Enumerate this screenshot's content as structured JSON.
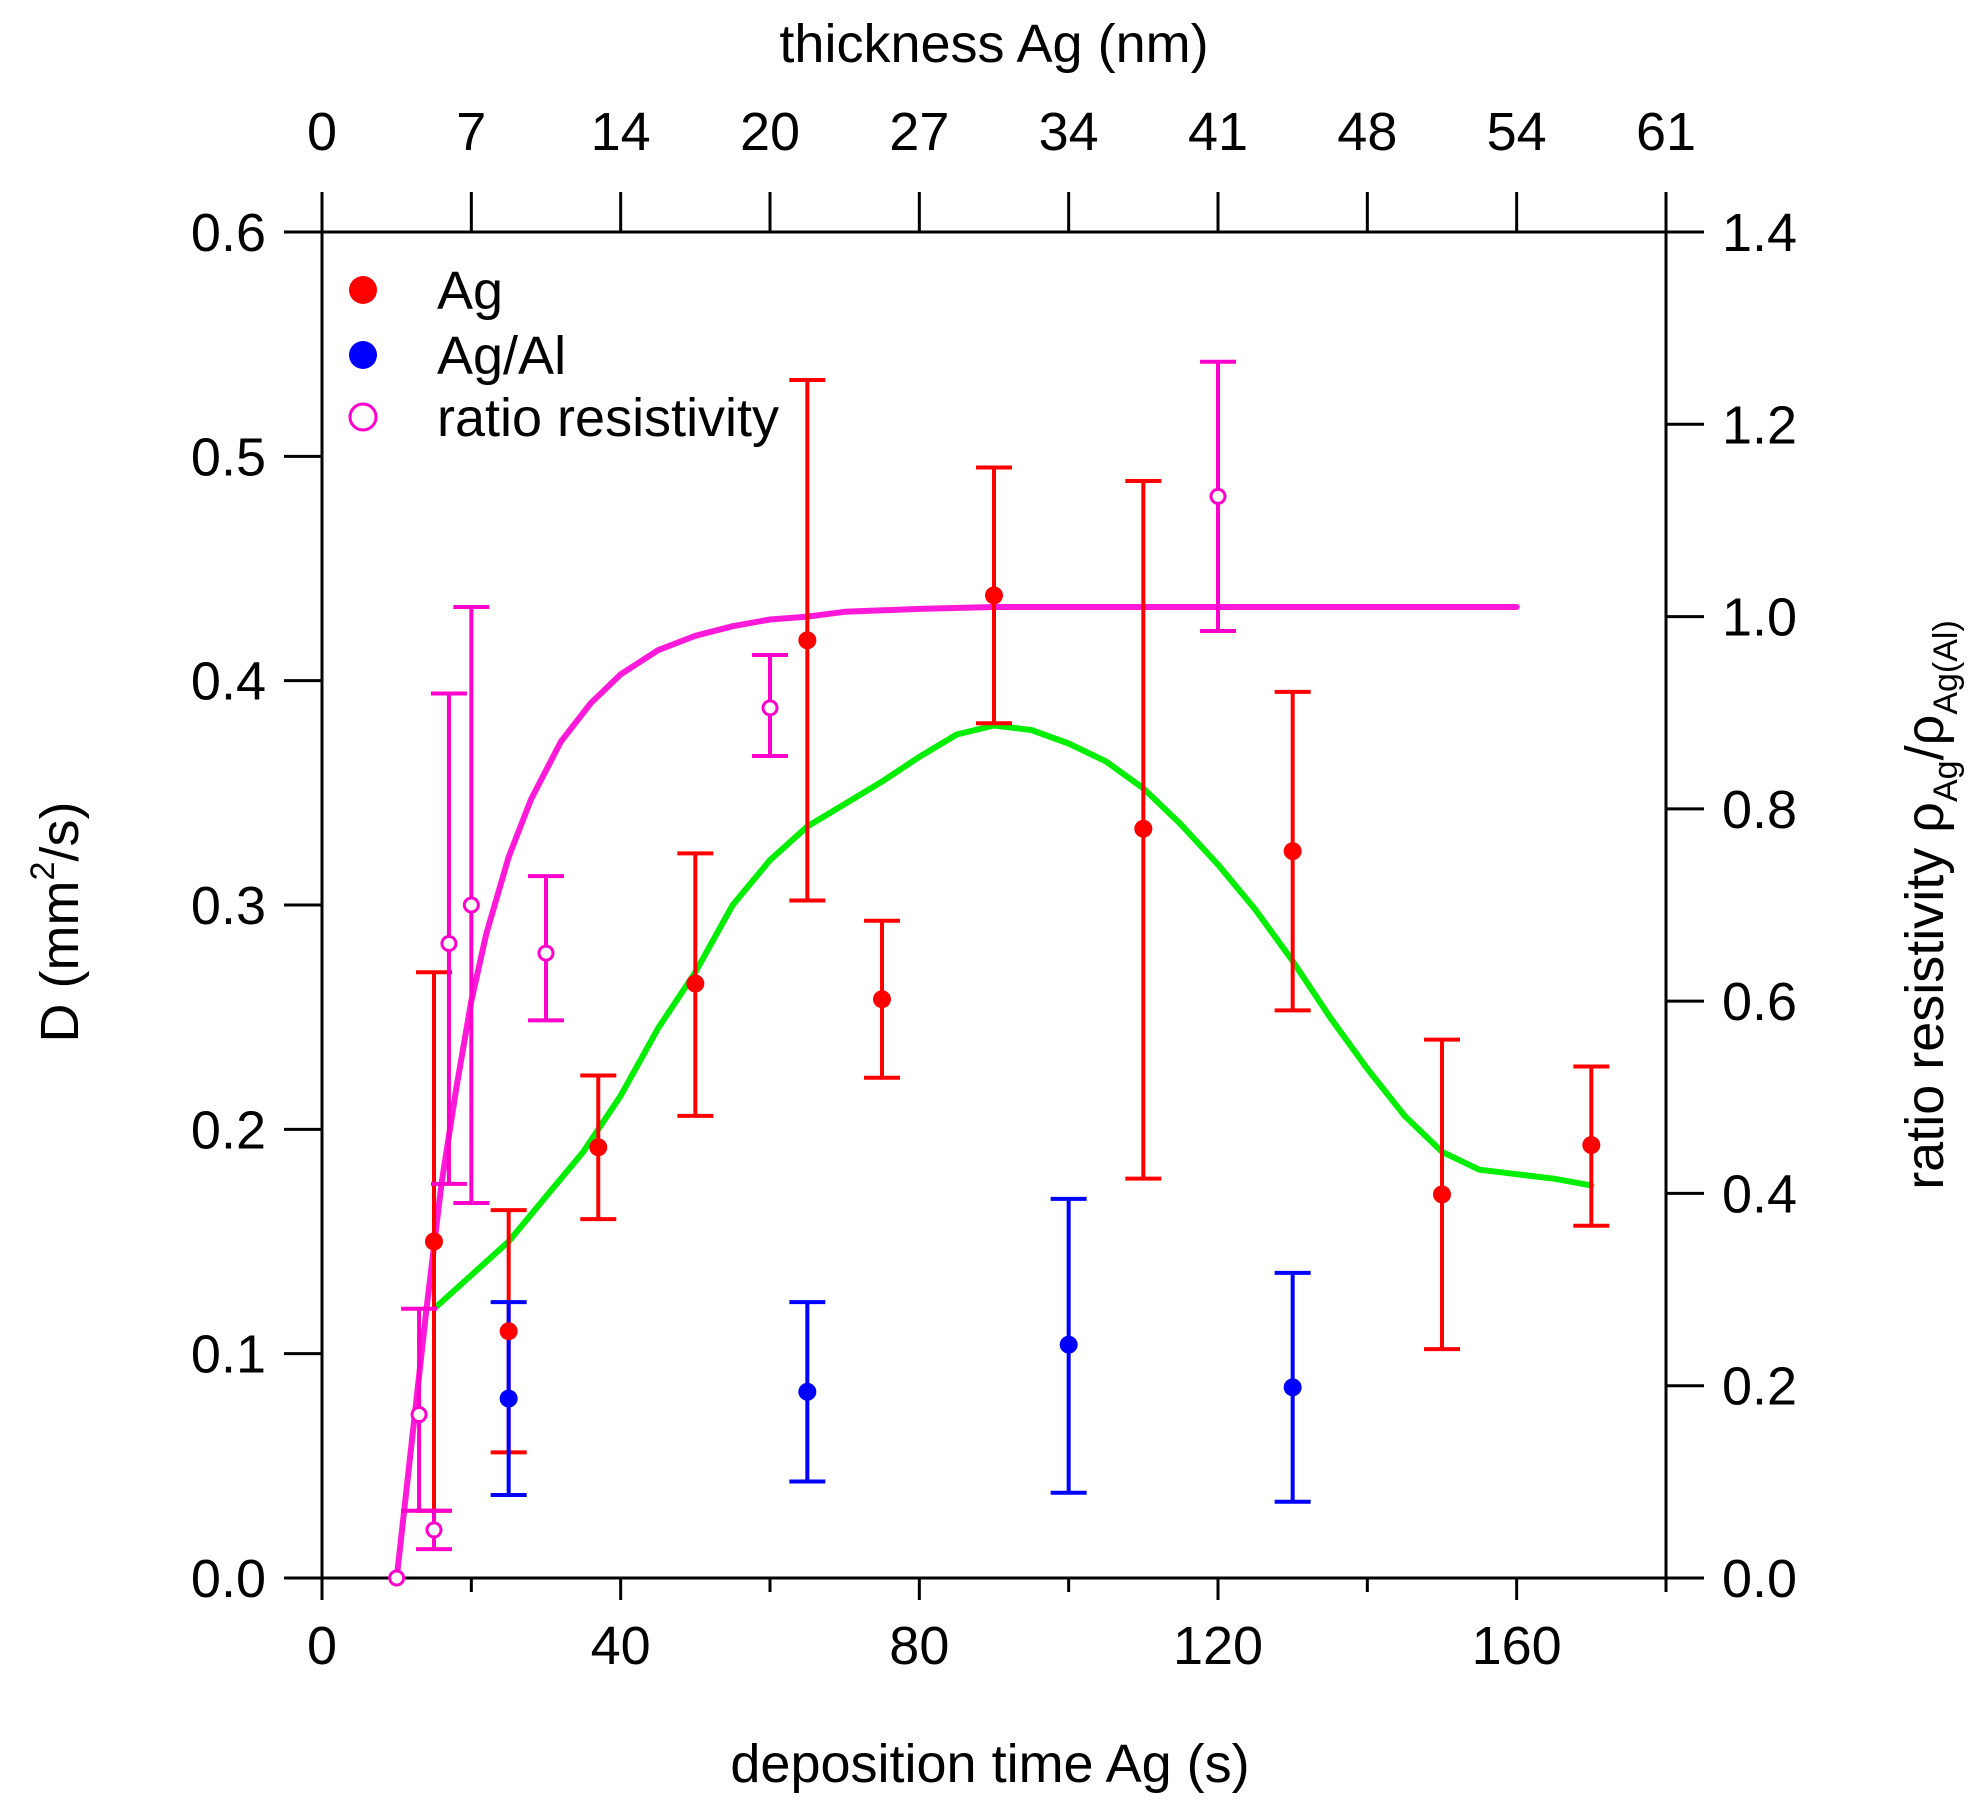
{
  "chart_data": {
    "type": "scatter",
    "x_bottom": {
      "label": "deposition time Ag (s)",
      "range": [
        0,
        180
      ],
      "ticks": [
        0,
        40,
        80,
        120,
        160
      ],
      "minor_ticks": [
        20,
        60,
        100,
        140,
        180
      ]
    },
    "x_top": {
      "label": "thickness Ag (nm)",
      "ticks": [
        "0",
        "7",
        "14",
        "20",
        "27",
        "34",
        "41",
        "48",
        "54",
        "61"
      ]
    },
    "y_left": {
      "label_main": "D (mm",
      "label_sup": "2",
      "label_end": "/s)",
      "range": [
        0,
        0.6
      ],
      "ticks": [
        "0.0",
        "0.1",
        "0.2",
        "0.3",
        "0.4",
        "0.5",
        "0.6"
      ]
    },
    "y_right": {
      "label_main": "ratio resistivity ρ",
      "label_sub1": "Ag",
      "label_mid": "/ρ",
      "label_sub2": "Ag(Al)",
      "range": [
        0,
        1.4
      ],
      "ticks": [
        "0.0",
        "0.2",
        "0.4",
        "0.6",
        "0.8",
        "1.0",
        "1.2",
        "1.4"
      ]
    },
    "legend": [
      {
        "label": "Ag",
        "color": "#ff0000",
        "marker": "filled-circle"
      },
      {
        "label": "Ag/Al",
        "color": "#0000ff",
        "marker": "filled-circle"
      },
      {
        "label": "ratio resistivity",
        "color": "#ff00cc",
        "marker": "open-circle"
      }
    ],
    "series": [
      {
        "name": "Ag",
        "axis": "left",
        "color": "#ff0000",
        "points": [
          {
            "x": 15,
            "y": 0.15,
            "lo": 0.03,
            "hi": 0.27
          },
          {
            "x": 25,
            "y": 0.11,
            "lo": 0.056,
            "hi": 0.164
          },
          {
            "x": 37,
            "y": 0.192,
            "lo": 0.16,
            "hi": 0.224
          },
          {
            "x": 50,
            "y": 0.265,
            "lo": 0.206,
            "hi": 0.323
          },
          {
            "x": 65,
            "y": 0.418,
            "lo": 0.302,
            "hi": 0.534
          },
          {
            "x": 75,
            "y": 0.258,
            "lo": 0.223,
            "hi": 0.293
          },
          {
            "x": 90,
            "y": 0.438,
            "lo": 0.381,
            "hi": 0.495
          },
          {
            "x": 110,
            "y": 0.334,
            "lo": 0.178,
            "hi": 0.489
          },
          {
            "x": 130,
            "y": 0.324,
            "lo": 0.253,
            "hi": 0.395
          },
          {
            "x": 150,
            "y": 0.171,
            "lo": 0.102,
            "hi": 0.24
          },
          {
            "x": 170,
            "y": 0.193,
            "lo": 0.157,
            "hi": 0.228
          }
        ]
      },
      {
        "name": "Ag/Al",
        "axis": "left",
        "color": "#0000ff",
        "points": [
          {
            "x": 25,
            "y": 0.08,
            "lo": 0.037,
            "hi": 0.123
          },
          {
            "x": 65,
            "y": 0.083,
            "lo": 0.043,
            "hi": 0.123
          },
          {
            "x": 100,
            "y": 0.104,
            "lo": 0.038,
            "hi": 0.169
          },
          {
            "x": 130,
            "y": 0.085,
            "lo": 0.034,
            "hi": 0.136
          }
        ]
      },
      {
        "name": "ratio resistivity",
        "axis": "right",
        "color": "#ff00cc",
        "points": [
          {
            "x": 10,
            "y": 0.0,
            "lo": 0.0,
            "hi": 0.0
          },
          {
            "x": 13,
            "y": 0.17,
            "lo": 0.07,
            "hi": 0.28
          },
          {
            "x": 15,
            "y": 0.05,
            "lo": 0.03,
            "hi": 0.07
          },
          {
            "x": 17,
            "y": 0.66,
            "lo": 0.41,
            "hi": 0.92
          },
          {
            "x": 20,
            "y": 0.7,
            "lo": 0.39,
            "hi": 1.01
          },
          {
            "x": 30,
            "y": 0.65,
            "lo": 0.58,
            "hi": 0.73
          },
          {
            "x": 60,
            "y": 0.905,
            "lo": 0.855,
            "hi": 0.96
          },
          {
            "x": 120,
            "y": 1.125,
            "lo": 0.985,
            "hi": 1.265
          }
        ]
      }
    ],
    "fits": [
      {
        "name": "ratio resistivity fit",
        "axis": "right",
        "color": "#ff1ad9",
        "x": [
          10,
          12,
          14,
          16,
          18,
          20,
          22,
          25,
          28,
          32,
          36,
          40,
          45,
          50,
          55,
          60,
          65,
          70,
          80,
          90,
          100,
          120,
          140,
          160
        ],
        "y": [
          0.0,
          0.14,
          0.28,
          0.41,
          0.51,
          0.6,
          0.67,
          0.75,
          0.81,
          0.87,
          0.91,
          0.94,
          0.965,
          0.98,
          0.99,
          0.997,
          1.0,
          1.005,
          1.008,
          1.01,
          1.01,
          1.01,
          1.01,
          1.01
        ]
      },
      {
        "name": "Ag fit",
        "axis": "left",
        "color": "#00ee00",
        "x": [
          15,
          20,
          25,
          30,
          35,
          40,
          45,
          50,
          55,
          60,
          65,
          70,
          75,
          80,
          85,
          90,
          95,
          100,
          105,
          110,
          115,
          120,
          125,
          130,
          135,
          140,
          145,
          150,
          155,
          160,
          165,
          170
        ],
        "y": [
          0.12,
          0.135,
          0.15,
          0.17,
          0.19,
          0.215,
          0.245,
          0.27,
          0.3,
          0.32,
          0.335,
          0.345,
          0.355,
          0.366,
          0.376,
          0.38,
          0.378,
          0.372,
          0.364,
          0.352,
          0.336,
          0.318,
          0.298,
          0.275,
          0.25,
          0.227,
          0.206,
          0.19,
          0.182,
          0.18,
          0.178,
          0.175
        ]
      }
    ]
  }
}
